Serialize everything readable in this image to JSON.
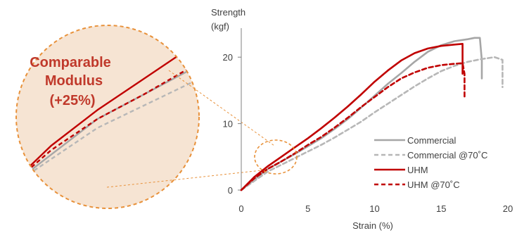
{
  "colors": {
    "commercial": "#a6a6a6",
    "commercial_70": "#b7b7b7",
    "uhm": "#c00000",
    "uhm_70": "#c00000",
    "callout_fill": "#f6e4d3",
    "callout_ring": "#e8913a",
    "callout_text": "#c0392b",
    "axis": "#7f7f7f"
  },
  "callout": {
    "line1": "Comparable",
    "line2": "Modulus",
    "line3": "(+25%)"
  },
  "chart_data": {
    "type": "line",
    "title": "",
    "xlabel": "Strain (%)",
    "ylabel_line1": "Strength",
    "ylabel_line2": "(kgf)",
    "xlim": [
      0,
      20
    ],
    "ylim": [
      0,
      25
    ],
    "x_ticks": [
      0,
      5,
      10,
      15,
      20
    ],
    "y_ticks": [
      0,
      10,
      20
    ],
    "grid": false,
    "legend_position": "bottom-right",
    "series": [
      {
        "name": "Commercial",
        "style": "solid",
        "x": [
          0,
          1,
          2,
          3,
          4,
          5,
          6,
          7,
          8,
          9,
          10,
          11,
          12,
          13,
          14,
          15,
          16,
          17,
          17.5,
          17.9,
          18.05,
          18.05
        ],
        "y": [
          0,
          1.6,
          3.2,
          4.3,
          5.4,
          6.6,
          7.8,
          9.2,
          10.7,
          12.4,
          14.2,
          16.0,
          17.6,
          19.3,
          20.8,
          21.8,
          22.4,
          22.7,
          22.9,
          22.9,
          19.5,
          16.8
        ]
      },
      {
        "name": "Commercial @70˚C",
        "style": "dashed",
        "x": [
          0,
          1,
          2,
          3,
          4,
          5,
          6,
          7,
          8,
          9,
          10,
          11,
          12,
          13,
          14,
          15,
          16,
          17,
          18,
          19,
          19.6,
          19.6
        ],
        "y": [
          0,
          1.4,
          2.8,
          3.8,
          4.8,
          5.8,
          6.8,
          7.9,
          9.1,
          10.3,
          11.7,
          13.0,
          14.3,
          15.6,
          16.8,
          17.9,
          18.7,
          19.3,
          19.7,
          20.0,
          19.6,
          15.5
        ]
      },
      {
        "name": "UHM",
        "style": "solid",
        "x": [
          0,
          1,
          2,
          3,
          4,
          5,
          6,
          7,
          8,
          9,
          10,
          11,
          12,
          13,
          14,
          15,
          16,
          16.6,
          16.6
        ],
        "y": [
          0,
          2.0,
          3.6,
          5.0,
          6.4,
          7.8,
          9.3,
          10.9,
          12.6,
          14.4,
          16.3,
          18.0,
          19.5,
          20.6,
          21.3,
          21.7,
          21.9,
          22.0,
          17.5
        ]
      },
      {
        "name": "UHM @70˚C",
        "style": "dashed",
        "x": [
          0,
          1,
          2,
          3,
          4,
          5,
          6,
          7,
          8,
          9,
          10,
          11,
          12,
          13,
          14,
          15,
          16,
          16.6,
          16.75,
          16.75
        ],
        "y": [
          0,
          1.8,
          3.2,
          4.3,
          5.5,
          6.8,
          8.0,
          9.4,
          10.9,
          12.5,
          14.0,
          15.5,
          16.8,
          17.7,
          18.4,
          18.8,
          19.0,
          19.1,
          17.5,
          14.0
        ]
      }
    ]
  }
}
